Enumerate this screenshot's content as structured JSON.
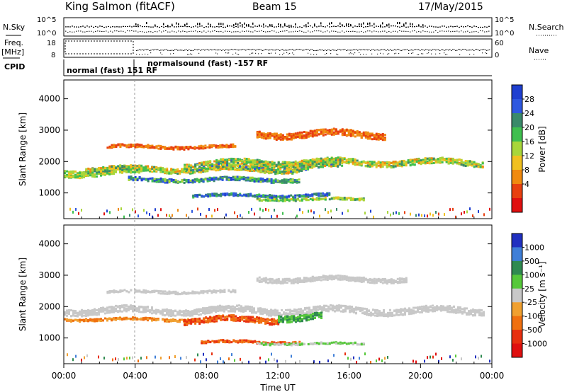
{
  "header": {
    "station": "King Salmon (fitACF)",
    "beam": "Beam 15",
    "date": "17/May/2015"
  },
  "top_panels": {
    "nsky_label": "N.Sky",
    "nsky_ticks": [
      "10^5",
      "10^0"
    ],
    "nsearch_label": "N.Search",
    "nsearch_ticks": [
      "10^5",
      "10^0"
    ],
    "freq_label": "Freq.",
    "freq_unit": "[MHz]",
    "freq_ticks": [
      "18",
      "8"
    ],
    "nave_label": "Nave",
    "nave_ticks": [
      "60",
      "0"
    ],
    "cpid_label": "CPID",
    "cpid_segments": [
      "normal (fast) 151 RF",
      "normalsound (fast) -157 RF"
    ]
  },
  "chart_data": [
    {
      "type": "heatmap",
      "name": "power-panel",
      "ylabel": "Slant Range [km]",
      "yticks": [
        "4000",
        "3000",
        "2000",
        "1000"
      ],
      "ylim": [
        180,
        4600
      ],
      "colorbar_label": "Power [dB]",
      "colorbar_ticks": [
        "28",
        "24",
        "20",
        "16",
        "12",
        "8",
        "4"
      ],
      "colors": [
        "#1f3fd0",
        "#2f58e0",
        "#3a8a6a",
        "#3fbf4f",
        "#a8d63a",
        "#f0c020",
        "#f08a10",
        "#e84010",
        "#e01010"
      ]
    },
    {
      "type": "heatmap",
      "name": "velocity-panel",
      "ylabel": "Slant Range [km]",
      "yticks": [
        "4000",
        "3000",
        "2000",
        "1000"
      ],
      "ylim": [
        180,
        4600
      ],
      "colorbar_label": "Velocity [m s⁻¹]",
      "colorbar_ticks": [
        "1000",
        "500",
        "100",
        "25",
        "-25",
        "-100",
        "-500",
        "-1000"
      ],
      "colors": [
        "#2030c0",
        "#3f7fd8",
        "#2f8a50",
        "#56c83a",
        "#c8c8c8",
        "#f0a030",
        "#f07010",
        "#e83010",
        "#e01010"
      ]
    }
  ],
  "xaxis": {
    "ticks": [
      "00:00",
      "04:00",
      "08:00",
      "12:00",
      "16:00",
      "20:00",
      "00:00"
    ],
    "label": "Time UT"
  }
}
